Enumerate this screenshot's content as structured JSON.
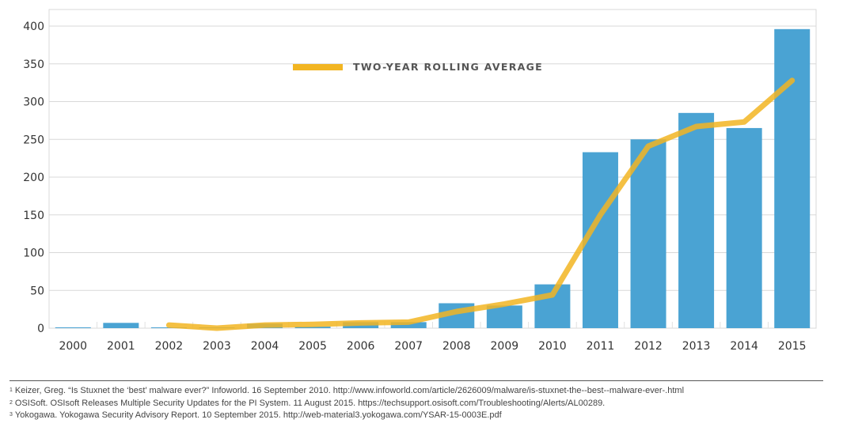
{
  "chart_data": {
    "type": "bar",
    "categories": [
      "2000",
      "2001",
      "2002",
      "2003",
      "2004",
      "2005",
      "2006",
      "2007",
      "2008",
      "2009",
      "2010",
      "2011",
      "2012",
      "2013",
      "2014",
      "2015"
    ],
    "series": [
      {
        "values": [
          1,
          7,
          1,
          0,
          6,
          2,
          8,
          8,
          33,
          30,
          58,
          233,
          250,
          285,
          265,
          396
        ],
        "color": "#4aa3d3",
        "kind": "bar"
      },
      {
        "name": "TWO-YEAR ROLLING AVERAGE",
        "values": [
          null,
          null,
          4,
          0,
          4,
          5,
          7,
          8,
          22,
          32,
          44,
          150,
          241,
          267,
          273,
          328
        ],
        "color": "#f2b522",
        "kind": "line"
      }
    ],
    "yticks": [
      0,
      50,
      100,
      150,
      200,
      250,
      300,
      350,
      400
    ],
    "ylim": [
      0,
      420
    ],
    "grid": true,
    "legend": "top-center"
  },
  "footnotes": [
    {
      "num": "1",
      "text": "Keizer, Greg. “Is Stuxnet the ‘best’ malware ever?” Infoworld. 16 September 2010. http://www.infoworld.com/article/2626009/malware/is-stuxnet-the--best--malware-ever-.html"
    },
    {
      "num": "2",
      "text": "OSISoft. OSIsoft Releases Multiple Security Updates for the PI System. 11 August 2015. https://techsupport.osisoft.com/Troubleshooting/Alerts/AL00289."
    },
    {
      "num": "3",
      "text": "Yokogawa. Yokogawa Security Advisory Report. 10 September 2015. http://web-material3.yokogawa.com/YSAR-15-0003E.pdf"
    }
  ]
}
